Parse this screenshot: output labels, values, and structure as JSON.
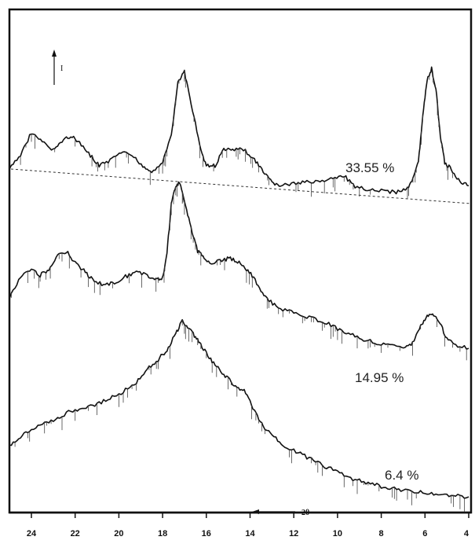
{
  "chart_data": {
    "type": "line",
    "title": "",
    "xlabel": "2θ",
    "x_arrow_label": "2θ",
    "y_arrow_label": "I",
    "x_direction": "decreasing to the right",
    "xlim": [
      25,
      4
    ],
    "x_ticks": [
      "24",
      "22",
      "20",
      "18",
      "16",
      "14",
      "12",
      "10",
      "8",
      "6",
      "4"
    ],
    "grid": false,
    "y_axis_shown": false,
    "series": [
      {
        "name": "33.55 %",
        "baseline_dashed": true,
        "points": [
          [
            25,
            0.0
          ],
          [
            24.5,
            0.2
          ],
          [
            24,
            0.55
          ],
          [
            23.5,
            0.4
          ],
          [
            23,
            0.28
          ],
          [
            22.6,
            0.42
          ],
          [
            22.2,
            0.5
          ],
          [
            21.8,
            0.38
          ],
          [
            21.3,
            0.2
          ],
          [
            20.9,
            0.05
          ],
          [
            20.4,
            0.12
          ],
          [
            19.9,
            0.25
          ],
          [
            19.4,
            0.2
          ],
          [
            18.9,
            0.05
          ],
          [
            18.5,
            -0.05
          ],
          [
            18.0,
            0.1
          ],
          [
            17.6,
            0.5
          ],
          [
            17.3,
            1.3
          ],
          [
            17.0,
            1.45
          ],
          [
            16.7,
            1.0
          ],
          [
            16.3,
            0.35
          ],
          [
            16.0,
            0.05
          ],
          [
            15.6,
            0.05
          ],
          [
            15.2,
            0.3
          ],
          [
            14.8,
            0.28
          ],
          [
            14.3,
            0.3
          ],
          [
            13.8,
            0.15
          ],
          [
            13.4,
            -0.05
          ],
          [
            13.0,
            -0.2
          ],
          [
            12.6,
            -0.25
          ],
          [
            12.0,
            -0.22
          ],
          [
            11.4,
            -0.2
          ],
          [
            10.8,
            -0.18
          ],
          [
            10.2,
            -0.15
          ],
          [
            9.7,
            -0.1
          ],
          [
            9.2,
            -0.28
          ],
          [
            8.6,
            -0.3
          ],
          [
            8.0,
            -0.32
          ],
          [
            7.4,
            -0.35
          ],
          [
            6.9,
            -0.3
          ],
          [
            6.6,
            -0.2
          ],
          [
            6.3,
            0.1
          ],
          [
            6.1,
            0.8
          ],
          [
            5.9,
            1.35
          ],
          [
            5.7,
            1.5
          ],
          [
            5.5,
            1.2
          ],
          [
            5.3,
            0.5
          ],
          [
            5.1,
            0.1
          ],
          [
            4.8,
            0.0
          ],
          [
            4.4,
            -0.2
          ],
          [
            4.0,
            -0.25
          ]
        ]
      },
      {
        "name": "14.95 %",
        "baseline_dashed": false,
        "points": [
          [
            25,
            0.0
          ],
          [
            24.5,
            0.4
          ],
          [
            24,
            0.6
          ],
          [
            23.6,
            0.45
          ],
          [
            23.2,
            0.55
          ],
          [
            22.8,
            0.85
          ],
          [
            22.4,
            0.95
          ],
          [
            22.0,
            0.7
          ],
          [
            21.6,
            0.55
          ],
          [
            21.2,
            0.35
          ],
          [
            20.7,
            0.25
          ],
          [
            20.2,
            0.3
          ],
          [
            19.7,
            0.42
          ],
          [
            19.2,
            0.5
          ],
          [
            18.7,
            0.45
          ],
          [
            18.3,
            0.35
          ],
          [
            18.0,
            0.4
          ],
          [
            17.8,
            0.9
          ],
          [
            17.6,
            1.9
          ],
          [
            17.4,
            2.3
          ],
          [
            17.2,
            2.35
          ],
          [
            17.0,
            2.0
          ],
          [
            16.7,
            1.4
          ],
          [
            16.4,
            0.95
          ],
          [
            16.1,
            0.8
          ],
          [
            15.7,
            0.7
          ],
          [
            15.3,
            0.75
          ],
          [
            14.9,
            0.8
          ],
          [
            14.5,
            0.7
          ],
          [
            14.1,
            0.55
          ],
          [
            13.7,
            0.3
          ],
          [
            13.3,
            0.0
          ],
          [
            12.8,
            -0.2
          ],
          [
            12.2,
            -0.3
          ],
          [
            11.6,
            -0.38
          ],
          [
            11.0,
            -0.45
          ],
          [
            10.4,
            -0.55
          ],
          [
            9.8,
            -0.7
          ],
          [
            9.2,
            -0.8
          ],
          [
            8.6,
            -0.9
          ],
          [
            8.0,
            -0.95
          ],
          [
            7.4,
            -1.0
          ],
          [
            6.9,
            -1.05
          ],
          [
            6.5,
            -0.9
          ],
          [
            6.2,
            -0.6
          ],
          [
            5.9,
            -0.4
          ],
          [
            5.6,
            -0.35
          ],
          [
            5.3,
            -0.55
          ],
          [
            5.0,
            -0.85
          ],
          [
            4.6,
            -1.0
          ],
          [
            4.0,
            -1.05
          ]
        ]
      },
      {
        "name": "6.4 %",
        "baseline_dashed": false,
        "points": [
          [
            25,
            0.0
          ],
          [
            24.5,
            0.15
          ],
          [
            24,
            0.25
          ],
          [
            23.4,
            0.35
          ],
          [
            22.8,
            0.45
          ],
          [
            22.2,
            0.55
          ],
          [
            21.6,
            0.6
          ],
          [
            21.0,
            0.65
          ],
          [
            20.4,
            0.75
          ],
          [
            19.8,
            0.85
          ],
          [
            19.2,
            1.0
          ],
          [
            18.7,
            1.2
          ],
          [
            18.2,
            1.35
          ],
          [
            17.8,
            1.5
          ],
          [
            17.4,
            1.75
          ],
          [
            17.1,
            1.95
          ],
          [
            16.8,
            1.85
          ],
          [
            16.5,
            1.7
          ],
          [
            16.2,
            1.55
          ],
          [
            15.8,
            1.35
          ],
          [
            15.4,
            1.2
          ],
          [
            15.0,
            1.05
          ],
          [
            14.6,
            0.9
          ],
          [
            14.2,
            0.85
          ],
          [
            13.8,
            0.55
          ],
          [
            13.4,
            0.3
          ],
          [
            12.9,
            0.15
          ],
          [
            12.4,
            0.0
          ],
          [
            11.8,
            -0.1
          ],
          [
            11.2,
            -0.2
          ],
          [
            10.6,
            -0.3
          ],
          [
            10.0,
            -0.4
          ],
          [
            9.4,
            -0.5
          ],
          [
            8.8,
            -0.55
          ],
          [
            8.2,
            -0.6
          ],
          [
            7.6,
            -0.65
          ],
          [
            7.0,
            -0.68
          ],
          [
            6.4,
            -0.7
          ],
          [
            5.8,
            -0.72
          ],
          [
            5.2,
            -0.74
          ],
          [
            4.6,
            -0.76
          ],
          [
            4.0,
            -0.78
          ]
        ]
      }
    ]
  }
}
